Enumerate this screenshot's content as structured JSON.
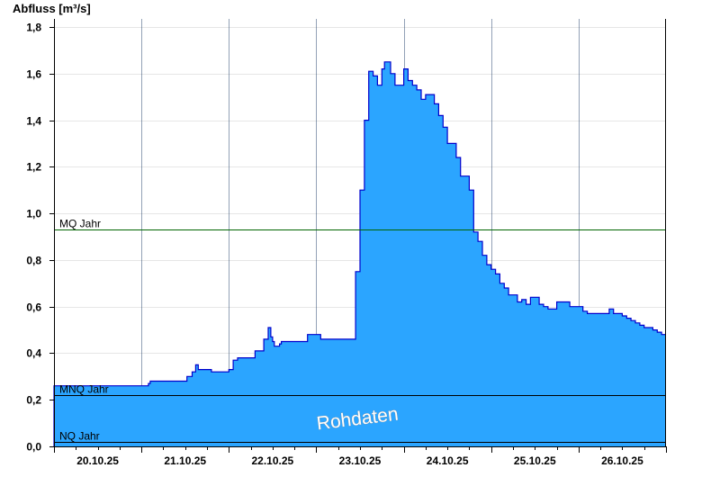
{
  "chart_data": {
    "type": "area",
    "ylabel": "Abfluss [m³/s]",
    "watermark": "Rohdaten",
    "ylim": [
      0,
      1.85
    ],
    "yticks": [
      0.0,
      0.2,
      0.4,
      0.6,
      0.8,
      1.0,
      1.2,
      1.4,
      1.6,
      1.8
    ],
    "ytick_labels": [
      "0,0",
      "0,2",
      "0,4",
      "0,6",
      "0,8",
      "1,0",
      "1,2",
      "1,4",
      "1,6",
      "1,8"
    ],
    "xlim": [
      0,
      7
    ],
    "x_unit": "days since 20.10.25 00:00",
    "x_tick_labels": [
      "20.10.25",
      "21.10.25",
      "22.10.25",
      "23.10.25",
      "24.10.25",
      "25.10.25",
      "26.10.25"
    ],
    "grid": true,
    "fill_color": "#2ba5ff",
    "line_color": "#0000cc",
    "reference_lines": [
      {
        "name": "MQ Jahr",
        "value": 0.93,
        "color": "#006400"
      },
      {
        "name": "MNQ Jahr",
        "value": 0.22,
        "color": "#000000"
      },
      {
        "name": "NQ Jahr",
        "value": 0.02,
        "color": "#000000"
      }
    ],
    "series": [
      {
        "name": "Abfluss",
        "x": [
          0.0,
          1.0,
          1.08,
          1.1,
          1.12,
          1.2,
          1.5,
          1.52,
          1.55,
          1.58,
          1.62,
          1.65,
          1.7,
          1.72,
          1.8,
          2.0,
          2.05,
          2.1,
          2.15,
          2.2,
          2.3,
          2.4,
          2.45,
          2.48,
          2.5,
          2.52,
          2.55,
          2.58,
          2.6,
          2.65,
          2.7,
          2.8,
          2.9,
          2.95,
          3.0,
          3.05,
          3.1,
          3.15,
          3.2,
          3.4,
          3.45,
          3.5,
          3.55,
          3.6,
          3.65,
          3.7,
          3.75,
          3.78,
          3.8,
          3.85,
          3.9,
          3.95,
          4.0,
          4.05,
          4.1,
          4.15,
          4.2,
          4.25,
          4.3,
          4.35,
          4.4,
          4.45,
          4.5,
          4.6,
          4.65,
          4.7,
          4.75,
          4.8,
          4.85,
          4.9,
          4.95,
          5.0,
          5.05,
          5.1,
          5.15,
          5.2,
          5.3,
          5.35,
          5.4,
          5.45,
          5.5,
          5.55,
          5.6,
          5.65,
          5.7,
          5.75,
          5.8,
          5.85,
          5.9,
          6.0,
          6.05,
          6.1,
          6.15,
          6.2,
          6.3,
          6.35,
          6.4,
          6.45,
          6.5,
          6.55,
          6.6,
          6.65,
          6.7,
          6.75,
          6.8,
          6.85,
          6.9,
          6.95,
          7.0
        ],
        "values": [
          0.26,
          0.26,
          0.27,
          0.28,
          0.28,
          0.28,
          0.28,
          0.3,
          0.3,
          0.32,
          0.35,
          0.33,
          0.33,
          0.33,
          0.32,
          0.33,
          0.37,
          0.38,
          0.38,
          0.38,
          0.41,
          0.46,
          0.51,
          0.47,
          0.45,
          0.43,
          0.43,
          0.44,
          0.45,
          0.45,
          0.45,
          0.45,
          0.48,
          0.48,
          0.48,
          0.46,
          0.46,
          0.46,
          0.46,
          0.46,
          0.75,
          1.1,
          1.4,
          1.61,
          1.59,
          1.55,
          1.62,
          1.65,
          1.65,
          1.6,
          1.55,
          1.55,
          1.62,
          1.57,
          1.55,
          1.53,
          1.49,
          1.51,
          1.51,
          1.47,
          1.42,
          1.37,
          1.3,
          1.24,
          1.16,
          1.16,
          1.1,
          0.92,
          0.88,
          0.82,
          0.78,
          0.76,
          0.74,
          0.7,
          0.68,
          0.65,
          0.62,
          0.63,
          0.61,
          0.64,
          0.64,
          0.61,
          0.6,
          0.59,
          0.59,
          0.62,
          0.62,
          0.62,
          0.6,
          0.6,
          0.58,
          0.57,
          0.57,
          0.57,
          0.57,
          0.59,
          0.57,
          0.57,
          0.56,
          0.55,
          0.54,
          0.53,
          0.52,
          0.51,
          0.51,
          0.5,
          0.49,
          0.48,
          0.48
        ]
      }
    ]
  }
}
